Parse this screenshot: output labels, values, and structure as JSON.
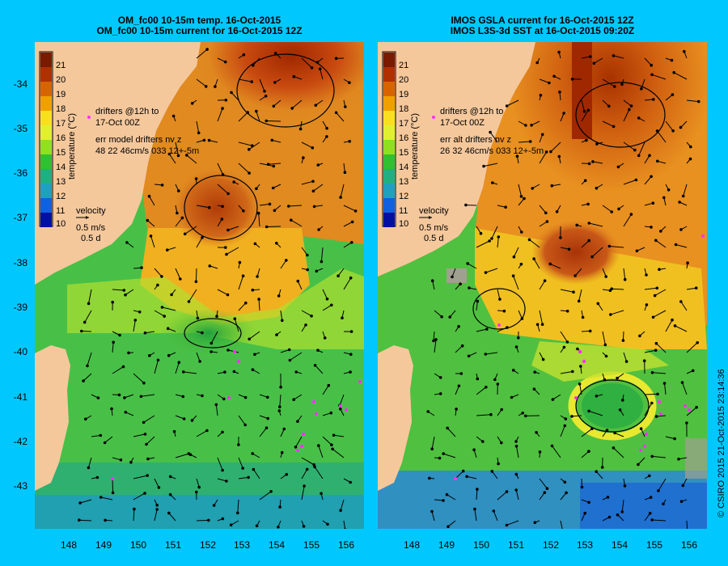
{
  "left_panel": {
    "title_line1": "OM_fc00 10-15m temp. 16-Oct-2015",
    "title_line2": "OM_fc00 10-15m current for 16-Oct-2015 12Z",
    "colorbar": {
      "label": "temperature (°C)",
      "ticks": [
        "21",
        "20",
        "19",
        "18",
        "17",
        "16",
        "15",
        "14",
        "13",
        "12",
        "11",
        "10"
      ]
    },
    "drifters_label": [
      "drifters @12h to",
      "17-Oct 00Z"
    ],
    "err_label": [
      "err model drifters nv z",
      "48 22 46cm/s 033 12+-5m"
    ],
    "velocity_label": "velocity",
    "scale_labels": [
      "0.5 m/s",
      "0.5 d"
    ]
  },
  "right_panel": {
    "title_line1": "IMOS GSLA current for 16-Oct-2015 12Z",
    "title_line2": "IMOS L3S-3d SST at 16-Oct-2015 09:20Z",
    "colorbar": {
      "label": "temperature (°C)",
      "ticks": [
        "21",
        "20",
        "19",
        "18",
        "17",
        "16",
        "15",
        "14",
        "13",
        "12",
        "11",
        "10"
      ]
    },
    "drifters_label": [
      "drifters @12h to",
      "17-Oct 00Z"
    ],
    "err_label": [
      "err alt drifters nv z",
      "26 32 46cm/s 033 12+-5m"
    ],
    "velocity_label": "velocity",
    "scale_labels": [
      "0.5 m/s",
      "0.5 d"
    ]
  },
  "axes": {
    "lat_ticks": [
      "-34",
      "-35",
      "-36",
      "-37",
      "-38",
      "-39",
      "-40",
      "-41",
      "-42",
      "-43"
    ],
    "lon_ticks": [
      "148",
      "149",
      "150",
      "151",
      "152",
      "153",
      "154",
      "155",
      "156"
    ],
    "lon_range": [
      147.0,
      156.5
    ],
    "lat_range": [
      -33.2,
      -44.0
    ]
  },
  "copyright": "© CSIRO 2015  21-Oct-2015 23:14:36",
  "colors": {
    "background": "#00c8ff",
    "land": "#f5c89c",
    "colorscale": [
      "#7a1a00",
      "#b03000",
      "#d86400",
      "#f0a000",
      "#f8e020",
      "#e0f030",
      "#90e020",
      "#30c030",
      "#20b080",
      "#20a0c0",
      "#1060e0",
      "#0010a0"
    ],
    "drifters": "#ff30ff"
  }
}
